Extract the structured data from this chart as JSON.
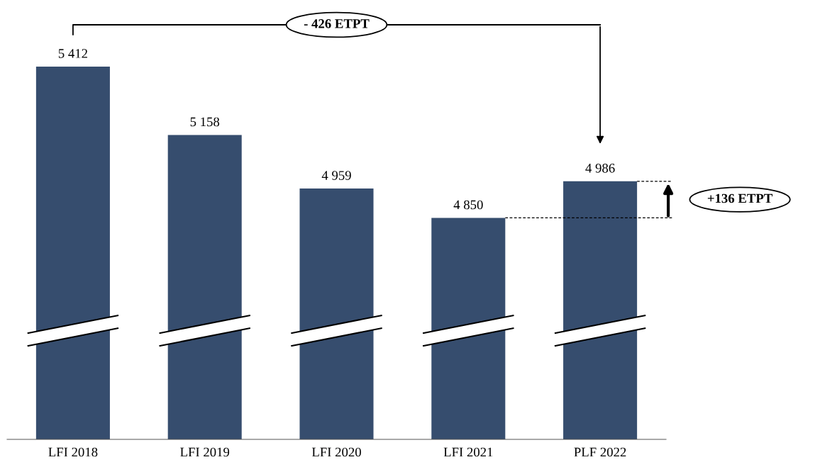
{
  "chart_data": {
    "type": "bar",
    "categories": [
      "LFI 2018",
      "LFI 2019",
      "LFI 2020",
      "LFI 2021",
      "PLF 2022"
    ],
    "values": [
      5412,
      5158,
      4959,
      4850,
      4986
    ],
    "color": "#364d6e",
    "data_labels": true,
    "tick_labels": "x",
    "grid": false,
    "annotations": [
      "- 426 ETPT",
      "+136 ETPT"
    ]
  }
}
